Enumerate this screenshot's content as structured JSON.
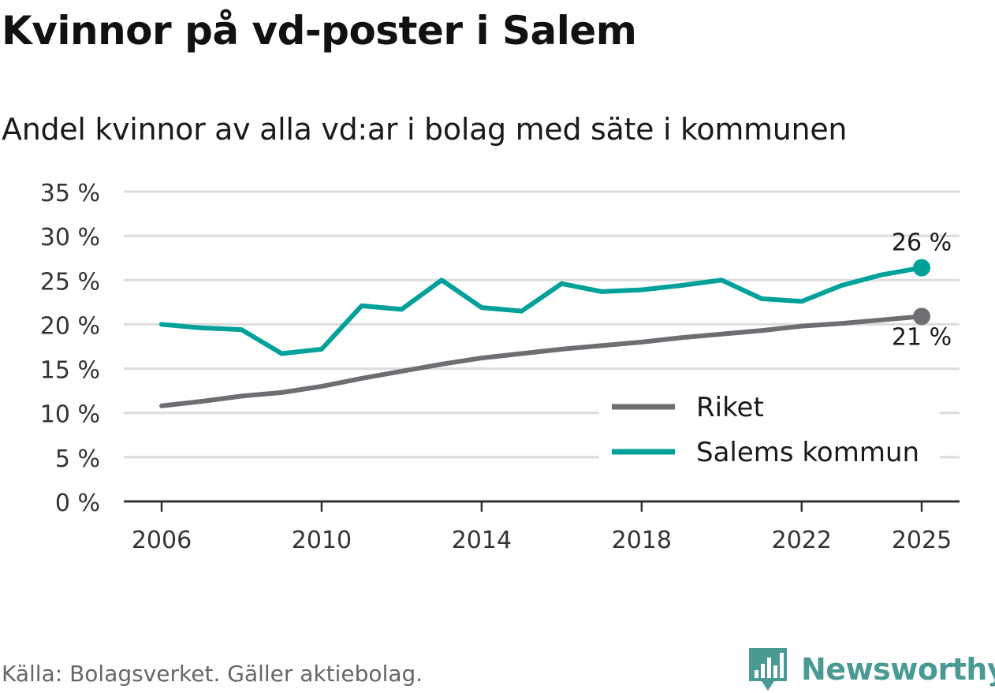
{
  "title": "Kvinnor på vd-poster i Salem",
  "subtitle": "Andel kvinnor av alla vd:ar i bolag med säte i kommunen",
  "source": "Källa: Bolagsverket. Gäller aktiebolag.",
  "brand": "Newsworthy",
  "colors": {
    "riket": "#6e6d72",
    "salem": "#00a19a",
    "grid": "#dcdcdc",
    "axis": "#333333",
    "brand": "#4a9a94"
  },
  "chart_data": {
    "type": "line",
    "title": "Kvinnor på vd-poster i Salem",
    "xlabel": "",
    "ylabel": "",
    "ylim": [
      0,
      35
    ],
    "xlim": [
      2006,
      2025
    ],
    "yticks": [
      0,
      5,
      10,
      15,
      20,
      25,
      30,
      35
    ],
    "ytick_labels": [
      "0 %",
      "5 %",
      "10 %",
      "15 %",
      "20 %",
      "25 %",
      "30 %",
      "35 %"
    ],
    "xticks": [
      2006,
      2010,
      2014,
      2018,
      2022,
      2025
    ],
    "xtick_labels": [
      "2006",
      "2010",
      "2014",
      "2018",
      "2022",
      "2025"
    ],
    "x": [
      2006,
      2007,
      2008,
      2009,
      2010,
      2011,
      2012,
      2013,
      2014,
      2015,
      2016,
      2017,
      2018,
      2019,
      2020,
      2021,
      2022,
      2023,
      2024,
      2025
    ],
    "series": [
      {
        "name": "Riket",
        "color": "#6e6d72",
        "values": [
          10.8,
          11.3,
          11.9,
          12.3,
          13.0,
          13.9,
          14.7,
          15.5,
          16.2,
          16.7,
          17.2,
          17.6,
          18.0,
          18.5,
          18.9,
          19.3,
          19.8,
          20.1,
          20.5,
          20.9
        ],
        "end_label": "21 %"
      },
      {
        "name": "Salems kommun",
        "color": "#00a19a",
        "values": [
          20.0,
          19.6,
          19.4,
          16.7,
          17.2,
          22.1,
          21.7,
          25.0,
          21.9,
          21.5,
          24.6,
          23.7,
          23.9,
          24.4,
          25.0,
          22.9,
          22.6,
          24.4,
          25.6,
          26.4
        ],
        "end_label": "26 %"
      }
    ],
    "legend": {
      "position": "bottom-right",
      "entries": [
        "Riket",
        "Salems kommun"
      ]
    }
  }
}
